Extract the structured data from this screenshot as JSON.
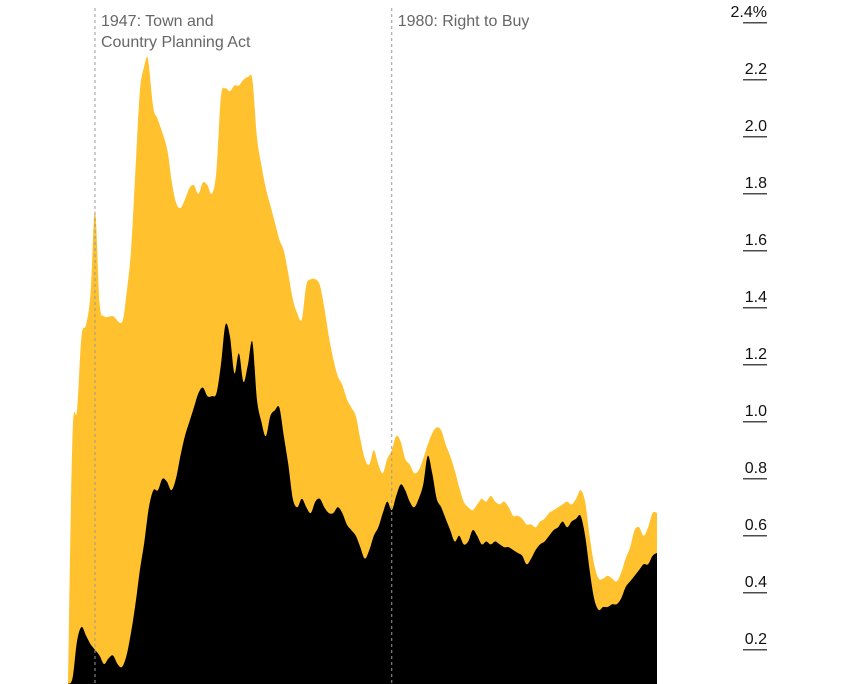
{
  "chart_data": {
    "type": "area",
    "title": "",
    "xlabel": "",
    "ylabel": "",
    "ylim": [
      0.08,
      2.48
    ],
    "y_ticks": [
      {
        "value": 2.4,
        "label": "2.4%"
      },
      {
        "value": 2.2,
        "label": "2.2"
      },
      {
        "value": 2.0,
        "label": "2.0"
      },
      {
        "value": 1.8,
        "label": "1.8"
      },
      {
        "value": 1.6,
        "label": "1.6"
      },
      {
        "value": 1.4,
        "label": "1.4"
      },
      {
        "value": 1.2,
        "label": "1.2"
      },
      {
        "value": 1.0,
        "label": "1.0"
      },
      {
        "value": 0.8,
        "label": "0.8"
      },
      {
        "value": 0.6,
        "label": "0.6"
      },
      {
        "value": 0.4,
        "label": "0.4"
      },
      {
        "value": 0.2,
        "label": "0.2"
      }
    ],
    "x_range": [
      1944,
      2016.5
    ],
    "annotations": [
      {
        "x": 1947,
        "lines": [
          "1947: Town and",
          "Country Planning Act"
        ]
      },
      {
        "x": 1980,
        "lines": [
          "1980: Right to Buy"
        ]
      }
    ],
    "colors": {
      "total": "#FFC12E",
      "inner": "#000000",
      "guide": "#999999"
    },
    "series": [
      {
        "color": "#FFC12E",
        "points": [
          [
            1944.0,
            0.08
          ],
          [
            1944.5,
            0.95
          ],
          [
            1945.0,
            1.04
          ],
          [
            1945.5,
            1.3
          ],
          [
            1946.0,
            1.34
          ],
          [
            1946.5,
            1.45
          ],
          [
            1947.0,
            1.74
          ],
          [
            1947.5,
            1.42
          ],
          [
            1948.0,
            1.37
          ],
          [
            1949.0,
            1.37
          ],
          [
            1950.0,
            1.35
          ],
          [
            1950.5,
            1.45
          ],
          [
            1951.0,
            1.6
          ],
          [
            1951.5,
            1.88
          ],
          [
            1952.0,
            2.16
          ],
          [
            1952.5,
            2.25
          ],
          [
            1952.8,
            2.28
          ],
          [
            1953.0,
            2.25
          ],
          [
            1953.5,
            2.1
          ],
          [
            1954.0,
            2.06
          ],
          [
            1955.0,
            1.96
          ],
          [
            1955.5,
            1.85
          ],
          [
            1956.0,
            1.77
          ],
          [
            1956.5,
            1.75
          ],
          [
            1957.0,
            1.78
          ],
          [
            1957.5,
            1.82
          ],
          [
            1958.0,
            1.83
          ],
          [
            1958.5,
            1.8
          ],
          [
            1959.0,
            1.84
          ],
          [
            1959.5,
            1.83
          ],
          [
            1960.0,
            1.8
          ],
          [
            1960.5,
            1.88
          ],
          [
            1961.0,
            2.14
          ],
          [
            1961.5,
            2.17
          ],
          [
            1962.0,
            2.16
          ],
          [
            1962.5,
            2.18
          ],
          [
            1963.0,
            2.18
          ],
          [
            1963.5,
            2.2
          ],
          [
            1964.0,
            2.21
          ],
          [
            1964.5,
            2.2
          ],
          [
            1965.0,
            2.0
          ],
          [
            1965.5,
            1.9
          ],
          [
            1966.0,
            1.82
          ],
          [
            1966.5,
            1.76
          ],
          [
            1967.0,
            1.7
          ],
          [
            1967.5,
            1.64
          ],
          [
            1968.0,
            1.6
          ],
          [
            1968.5,
            1.52
          ],
          [
            1969.0,
            1.43
          ],
          [
            1969.5,
            1.38
          ],
          [
            1970.0,
            1.36
          ],
          [
            1970.5,
            1.48
          ],
          [
            1971.0,
            1.5
          ],
          [
            1971.5,
            1.5
          ],
          [
            1972.0,
            1.48
          ],
          [
            1972.5,
            1.4
          ],
          [
            1973.0,
            1.3
          ],
          [
            1973.5,
            1.22
          ],
          [
            1974.0,
            1.16
          ],
          [
            1974.5,
            1.13
          ],
          [
            1975.0,
            1.08
          ],
          [
            1975.5,
            1.05
          ],
          [
            1976.0,
            1.02
          ],
          [
            1976.5,
            0.94
          ],
          [
            1977.0,
            0.87
          ],
          [
            1977.5,
            0.85
          ],
          [
            1978.0,
            0.9
          ],
          [
            1978.5,
            0.85
          ],
          [
            1979.0,
            0.82
          ],
          [
            1979.5,
            0.87
          ],
          [
            1980.0,
            0.9
          ],
          [
            1980.5,
            0.95
          ],
          [
            1981.0,
            0.93
          ],
          [
            1981.5,
            0.87
          ],
          [
            1982.0,
            0.85
          ],
          [
            1982.5,
            0.82
          ],
          [
            1983.0,
            0.83
          ],
          [
            1983.5,
            0.87
          ],
          [
            1984.0,
            0.92
          ],
          [
            1984.5,
            0.96
          ],
          [
            1985.0,
            0.98
          ],
          [
            1985.5,
            0.97
          ],
          [
            1986.0,
            0.92
          ],
          [
            1986.5,
            0.88
          ],
          [
            1987.0,
            0.83
          ],
          [
            1987.5,
            0.77
          ],
          [
            1988.0,
            0.72
          ],
          [
            1988.5,
            0.7
          ],
          [
            1989.0,
            0.69
          ],
          [
            1989.5,
            0.71
          ],
          [
            1990.0,
            0.73
          ],
          [
            1990.5,
            0.72
          ],
          [
            1991.0,
            0.74
          ],
          [
            1991.5,
            0.72
          ],
          [
            1992.0,
            0.71
          ],
          [
            1992.5,
            0.72
          ],
          [
            1993.0,
            0.7
          ],
          [
            1993.5,
            0.67
          ],
          [
            1994.0,
            0.67
          ],
          [
            1994.5,
            0.66
          ],
          [
            1995.0,
            0.64
          ],
          [
            1995.5,
            0.64
          ],
          [
            1996.0,
            0.63
          ],
          [
            1996.5,
            0.65
          ],
          [
            1997.0,
            0.66
          ],
          [
            1997.5,
            0.68
          ],
          [
            1998.0,
            0.69
          ],
          [
            1998.5,
            0.7
          ],
          [
            1999.0,
            0.71
          ],
          [
            1999.5,
            0.72
          ],
          [
            2000.0,
            0.71
          ],
          [
            2000.5,
            0.73
          ],
          [
            2001.0,
            0.76
          ],
          [
            2001.5,
            0.72
          ],
          [
            2002.0,
            0.6
          ],
          [
            2002.5,
            0.5
          ],
          [
            2003.0,
            0.45
          ],
          [
            2003.5,
            0.45
          ],
          [
            2004.0,
            0.46
          ],
          [
            2004.5,
            0.45
          ],
          [
            2005.0,
            0.44
          ],
          [
            2005.5,
            0.47
          ],
          [
            2006.0,
            0.52
          ],
          [
            2006.5,
            0.56
          ],
          [
            2007.0,
            0.62
          ],
          [
            2007.5,
            0.63
          ],
          [
            2008.0,
            0.6
          ],
          [
            2008.5,
            0.63
          ],
          [
            2009.0,
            0.68
          ],
          [
            2009.5,
            0.68
          ]
        ]
      },
      {
        "color": "#000000",
        "points": [
          [
            1944.0,
            0.08
          ],
          [
            1944.5,
            0.1
          ],
          [
            1945.0,
            0.23
          ],
          [
            1945.5,
            0.28
          ],
          [
            1946.0,
            0.25
          ],
          [
            1946.5,
            0.22
          ],
          [
            1947.0,
            0.2
          ],
          [
            1947.5,
            0.18
          ],
          [
            1948.0,
            0.15
          ],
          [
            1948.5,
            0.17
          ],
          [
            1949.0,
            0.18
          ],
          [
            1949.5,
            0.15
          ],
          [
            1950.0,
            0.14
          ],
          [
            1950.5,
            0.18
          ],
          [
            1951.0,
            0.26
          ],
          [
            1951.5,
            0.36
          ],
          [
            1952.0,
            0.48
          ],
          [
            1952.5,
            0.58
          ],
          [
            1953.0,
            0.7
          ],
          [
            1953.5,
            0.76
          ],
          [
            1954.0,
            0.76
          ],
          [
            1954.5,
            0.8
          ],
          [
            1955.0,
            0.79
          ],
          [
            1955.5,
            0.76
          ],
          [
            1956.0,
            0.8
          ],
          [
            1956.5,
            0.88
          ],
          [
            1957.0,
            0.95
          ],
          [
            1957.5,
            1.0
          ],
          [
            1958.0,
            1.05
          ],
          [
            1958.5,
            1.1
          ],
          [
            1959.0,
            1.12
          ],
          [
            1959.5,
            1.09
          ],
          [
            1960.0,
            1.09
          ],
          [
            1960.5,
            1.1
          ],
          [
            1961.0,
            1.2
          ],
          [
            1961.5,
            1.34
          ],
          [
            1962.0,
            1.3
          ],
          [
            1962.5,
            1.17
          ],
          [
            1963.0,
            1.24
          ],
          [
            1963.5,
            1.14
          ],
          [
            1964.0,
            1.2
          ],
          [
            1964.5,
            1.28
          ],
          [
            1965.0,
            1.08
          ],
          [
            1965.5,
            1.0
          ],
          [
            1966.0,
            0.95
          ],
          [
            1966.5,
            1.02
          ],
          [
            1967.0,
            1.04
          ],
          [
            1967.5,
            1.05
          ],
          [
            1968.0,
            0.95
          ],
          [
            1968.5,
            0.85
          ],
          [
            1969.0,
            0.73
          ],
          [
            1969.5,
            0.7
          ],
          [
            1970.0,
            0.73
          ],
          [
            1970.5,
            0.7
          ],
          [
            1971.0,
            0.68
          ],
          [
            1971.5,
            0.72
          ],
          [
            1972.0,
            0.73
          ],
          [
            1972.5,
            0.7
          ],
          [
            1973.0,
            0.68
          ],
          [
            1973.5,
            0.68
          ],
          [
            1974.0,
            0.7
          ],
          [
            1974.5,
            0.68
          ],
          [
            1975.0,
            0.64
          ],
          [
            1975.5,
            0.62
          ],
          [
            1976.0,
            0.6
          ],
          [
            1976.5,
            0.56
          ],
          [
            1977.0,
            0.52
          ],
          [
            1977.5,
            0.55
          ],
          [
            1978.0,
            0.6
          ],
          [
            1978.5,
            0.63
          ],
          [
            1979.0,
            0.68
          ],
          [
            1979.5,
            0.72
          ],
          [
            1980.0,
            0.69
          ],
          [
            1980.5,
            0.74
          ],
          [
            1981.0,
            0.78
          ],
          [
            1981.5,
            0.76
          ],
          [
            1982.0,
            0.72
          ],
          [
            1982.5,
            0.7
          ],
          [
            1983.0,
            0.73
          ],
          [
            1983.5,
            0.78
          ],
          [
            1984.0,
            0.88
          ],
          [
            1984.5,
            0.82
          ],
          [
            1985.0,
            0.73
          ],
          [
            1985.5,
            0.7
          ],
          [
            1986.0,
            0.66
          ],
          [
            1986.5,
            0.62
          ],
          [
            1987.0,
            0.58
          ],
          [
            1987.5,
            0.6
          ],
          [
            1988.0,
            0.57
          ],
          [
            1988.5,
            0.58
          ],
          [
            1989.0,
            0.62
          ],
          [
            1989.5,
            0.6
          ],
          [
            1990.0,
            0.57
          ],
          [
            1990.5,
            0.58
          ],
          [
            1991.0,
            0.57
          ],
          [
            1991.5,
            0.58
          ],
          [
            1992.0,
            0.57
          ],
          [
            1992.5,
            0.56
          ],
          [
            1993.0,
            0.56
          ],
          [
            1993.5,
            0.55
          ],
          [
            1994.0,
            0.54
          ],
          [
            1994.5,
            0.53
          ],
          [
            1995.0,
            0.5
          ],
          [
            1995.5,
            0.52
          ],
          [
            1996.0,
            0.55
          ],
          [
            1996.5,
            0.57
          ],
          [
            1997.0,
            0.58
          ],
          [
            1997.5,
            0.6
          ],
          [
            1998.0,
            0.62
          ],
          [
            1998.5,
            0.63
          ],
          [
            1999.0,
            0.65
          ],
          [
            1999.5,
            0.63
          ],
          [
            2000.0,
            0.65
          ],
          [
            2000.5,
            0.66
          ],
          [
            2001.0,
            0.67
          ],
          [
            2001.5,
            0.6
          ],
          [
            2002.0,
            0.48
          ],
          [
            2002.5,
            0.38
          ],
          [
            2003.0,
            0.34
          ],
          [
            2003.5,
            0.35
          ],
          [
            2004.0,
            0.35
          ],
          [
            2004.5,
            0.36
          ],
          [
            2005.0,
            0.36
          ],
          [
            2005.5,
            0.38
          ],
          [
            2006.0,
            0.42
          ],
          [
            2006.5,
            0.44
          ],
          [
            2007.0,
            0.46
          ],
          [
            2007.5,
            0.48
          ],
          [
            2008.0,
            0.5
          ],
          [
            2008.5,
            0.5
          ],
          [
            2009.0,
            0.53
          ],
          [
            2009.5,
            0.54
          ]
        ]
      }
    ]
  }
}
